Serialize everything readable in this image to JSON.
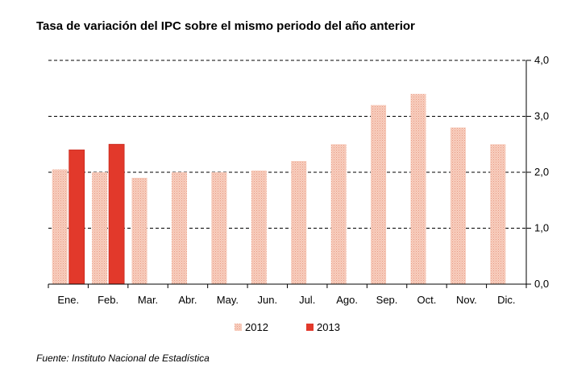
{
  "title": "Tasa de variación del IPC sobre el mismo periodo del año anterior",
  "source": "Fuente: Instituto Nacional de Estadística",
  "colors": {
    "s2012": "#f4b8a3",
    "s2013": "#e2392b",
    "s2013_edge": "#c82a1f",
    "grid": "#000000"
  },
  "chart_data": {
    "type": "bar",
    "categories": [
      "Ene.",
      "Feb.",
      "Mar.",
      "Abr.",
      "May.",
      "Jun.",
      "Jul.",
      "Ago.",
      "Sep.",
      "Oct.",
      "Nov.",
      "Dic."
    ],
    "series": [
      {
        "name": "2012",
        "values": [
          2.05,
          2.0,
          1.9,
          2.0,
          2.0,
          2.03,
          2.2,
          2.5,
          3.2,
          3.4,
          2.8,
          2.5
        ]
      },
      {
        "name": "2013",
        "values": [
          2.4,
          2.5,
          null,
          null,
          null,
          null,
          null,
          null,
          null,
          null,
          null,
          null
        ]
      }
    ],
    "ylim": [
      0,
      4
    ],
    "yticks": [
      "0,0",
      "1,0",
      "2,0",
      "3,0",
      "4,0"
    ],
    "y_axis_side": "right",
    "grid": true,
    "legend_position": "bottom-center"
  }
}
